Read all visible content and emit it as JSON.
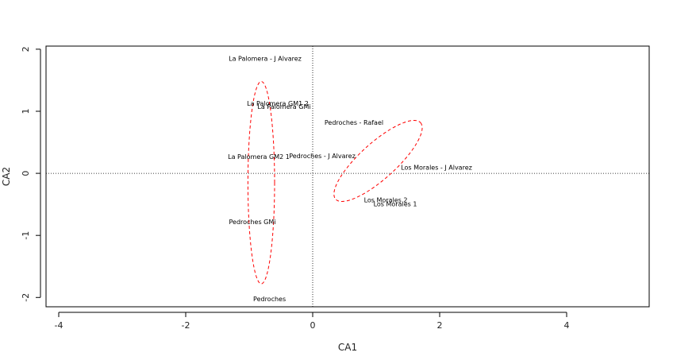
{
  "chart_data": {
    "type": "scatter",
    "xlabel": "CA1",
    "ylabel": "CA2",
    "xlim": [
      -4.2,
      5.3
    ],
    "ylim": [
      -2.15,
      2.05
    ],
    "xticks": [
      -4,
      -2,
      0,
      2,
      4
    ],
    "yticks": [
      -2,
      -1,
      0,
      1,
      2
    ],
    "reference_lines": {
      "x": 0,
      "y": 0,
      "style": "dotted"
    },
    "points": [
      {
        "label": "La Palomera - J Alvarez",
        "x": -0.75,
        "y": 1.85
      },
      {
        "label": "La Palomera GM1 2",
        "x": -0.55,
        "y": 1.13
      },
      {
        "label": "La Palomera GMi",
        "x": -0.45,
        "y": 1.08
      },
      {
        "label": "Pedroches - Rafael",
        "x": 0.65,
        "y": 0.82
      },
      {
        "label": "La Palomera GM2 1",
        "x": -0.85,
        "y": 0.27
      },
      {
        "label": "Pedroches - J Alvarez",
        "x": 0.15,
        "y": 0.28
      },
      {
        "label": "Los Morales - J Alvarez",
        "x": 1.95,
        "y": 0.1
      },
      {
        "label": "Los Morales 2",
        "x": 1.15,
        "y": -0.43
      },
      {
        "label": "Los Morales 1",
        "x": 1.3,
        "y": -0.49
      },
      {
        "label": "Pedroches GMi",
        "x": -0.95,
        "y": -0.78
      },
      {
        "label": "Pedroches",
        "x": -0.68,
        "y": -2.02
      }
    ],
    "ellipses": [
      {
        "cx": -0.81,
        "cy": -0.15,
        "rx": 0.21,
        "ry": 1.63,
        "angle": 0,
        "color": "#ff0000",
        "style": "dashed"
      },
      {
        "cx": 1.03,
        "cy": 0.2,
        "rx": 0.9,
        "ry": 0.29,
        "angle": -42,
        "color": "#ff0000",
        "style": "dashed"
      }
    ]
  }
}
